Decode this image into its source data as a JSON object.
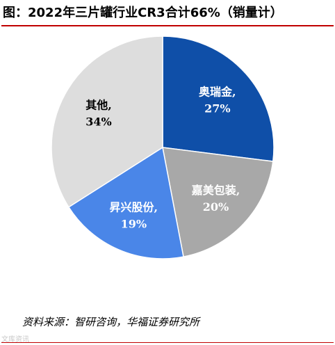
{
  "title": "图：2022年三片罐行业CR3合计66%（销量计）",
  "source": "资料来源：智研咨询，华福证券研究所",
  "watermark": "文库资讯",
  "chart_data": {
    "type": "pie",
    "title": "图：2022年三片罐行业CR3合计66%（销量计）",
    "slices": [
      {
        "name": "奥瑞金,",
        "value": 27,
        "label": "27%",
        "color": "#0f4fa8",
        "label_color": "#ffffff"
      },
      {
        "name": "嘉美包装,",
        "value": 20,
        "label": "20%",
        "color": "#a8a8a8",
        "label_color": "#ffffff"
      },
      {
        "name": "昇兴股份,",
        "value": 19,
        "label": "19%",
        "color": "#4a86e8",
        "label_color": "#ffffff"
      },
      {
        "name": "其他,",
        "value": 34,
        "label": "34%",
        "color": "#dddddd",
        "label_color": "#000000"
      }
    ]
  }
}
